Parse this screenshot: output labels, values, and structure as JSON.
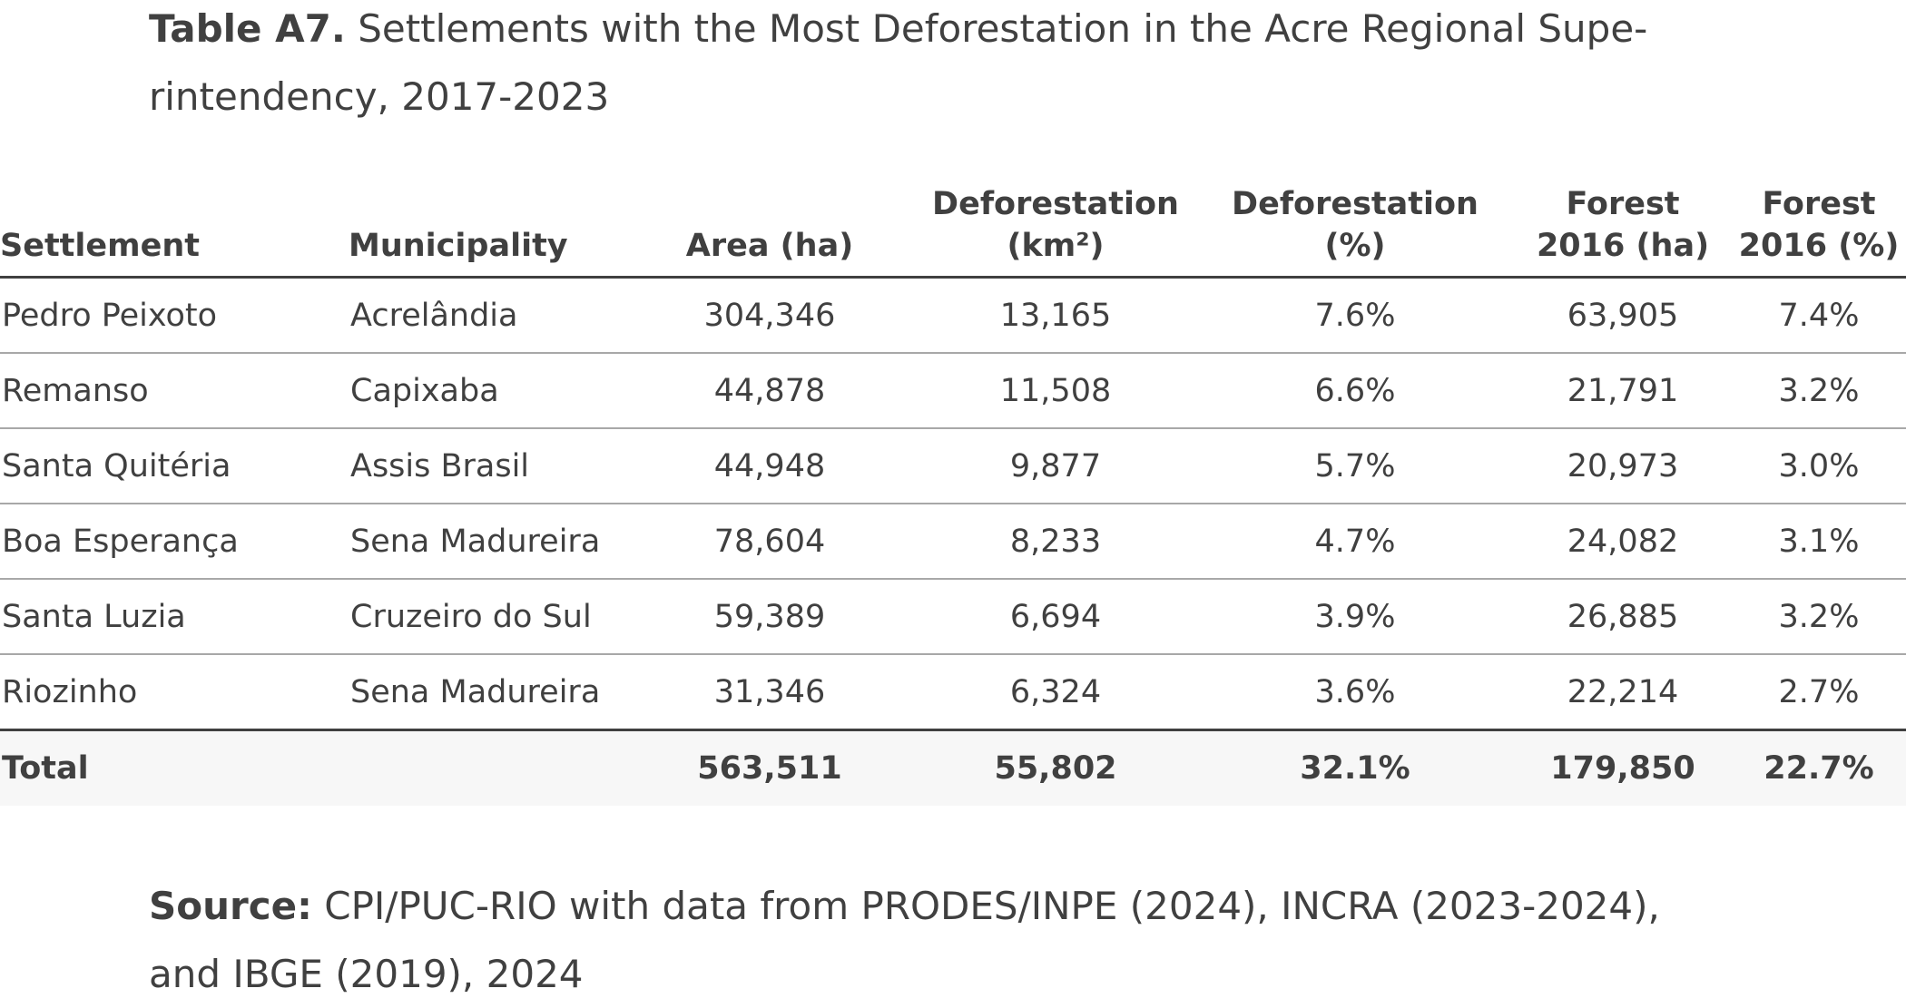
{
  "caption": {
    "lead": "Table A7.",
    "line1": "Settlements with the Most Deforestation in the Acre Regional Supe-",
    "line2": "rintendency, 2017-2023"
  },
  "table": {
    "headers": {
      "settlement": "Settlement",
      "municipality": "Municipality",
      "area": "Area (ha)",
      "deforestation_km2_line1": "Deforestation",
      "deforestation_km2_line2": "(km²)",
      "deforestation_pct_line1": "Deforestation",
      "deforestation_pct_line2": "(%)",
      "forest_ha_line1": "Forest",
      "forest_ha_line2": "2016 (ha)",
      "forest_pct_line1": "Forest",
      "forest_pct_line2": "2016 (%)"
    },
    "rows": [
      {
        "settlement": "Pedro Peixoto",
        "municipality": "Acrelândia",
        "area": "304,346",
        "deforestation_km2": "13,165",
        "deforestation_pct": "7.6%",
        "forest_ha": "63,905",
        "forest_pct": "7.4%"
      },
      {
        "settlement": "Remanso",
        "municipality": "Capixaba",
        "area": "44,878",
        "deforestation_km2": "11,508",
        "deforestation_pct": "6.6%",
        "forest_ha": "21,791",
        "forest_pct": "3.2%"
      },
      {
        "settlement": "Santa Quitéria",
        "municipality": "Assis Brasil",
        "area": "44,948",
        "deforestation_km2": "9,877",
        "deforestation_pct": "5.7%",
        "forest_ha": "20,973",
        "forest_pct": "3.0%"
      },
      {
        "settlement": "Boa Esperança",
        "municipality": "Sena Madureira",
        "area": "78,604",
        "deforestation_km2": "8,233",
        "deforestation_pct": "4.7%",
        "forest_ha": "24,082",
        "forest_pct": "3.1%"
      },
      {
        "settlement": "Santa Luzia",
        "municipality": "Cruzeiro do Sul",
        "area": "59,389",
        "deforestation_km2": "6,694",
        "deforestation_pct": "3.9%",
        "forest_ha": "26,885",
        "forest_pct": "3.2%"
      },
      {
        "settlement": "Riozinho",
        "municipality": "Sena Madureira",
        "area": "31,346",
        "deforestation_km2": "6,324",
        "deforestation_pct": "3.6%",
        "forest_ha": "22,214",
        "forest_pct": "2.7%"
      }
    ],
    "total": {
      "label": "Total",
      "area": "563,511",
      "deforestation_km2": "55,802",
      "deforestation_pct": "32.1%",
      "forest_ha": "179,850",
      "forest_pct": "22.7%"
    }
  },
  "source": {
    "lead": "Source:",
    "line1": "CPI/PUC-RIO with data from PRODES/INPE (2024), INCRA (2023-2024),",
    "line2": "and IBGE (2019), 2024"
  }
}
